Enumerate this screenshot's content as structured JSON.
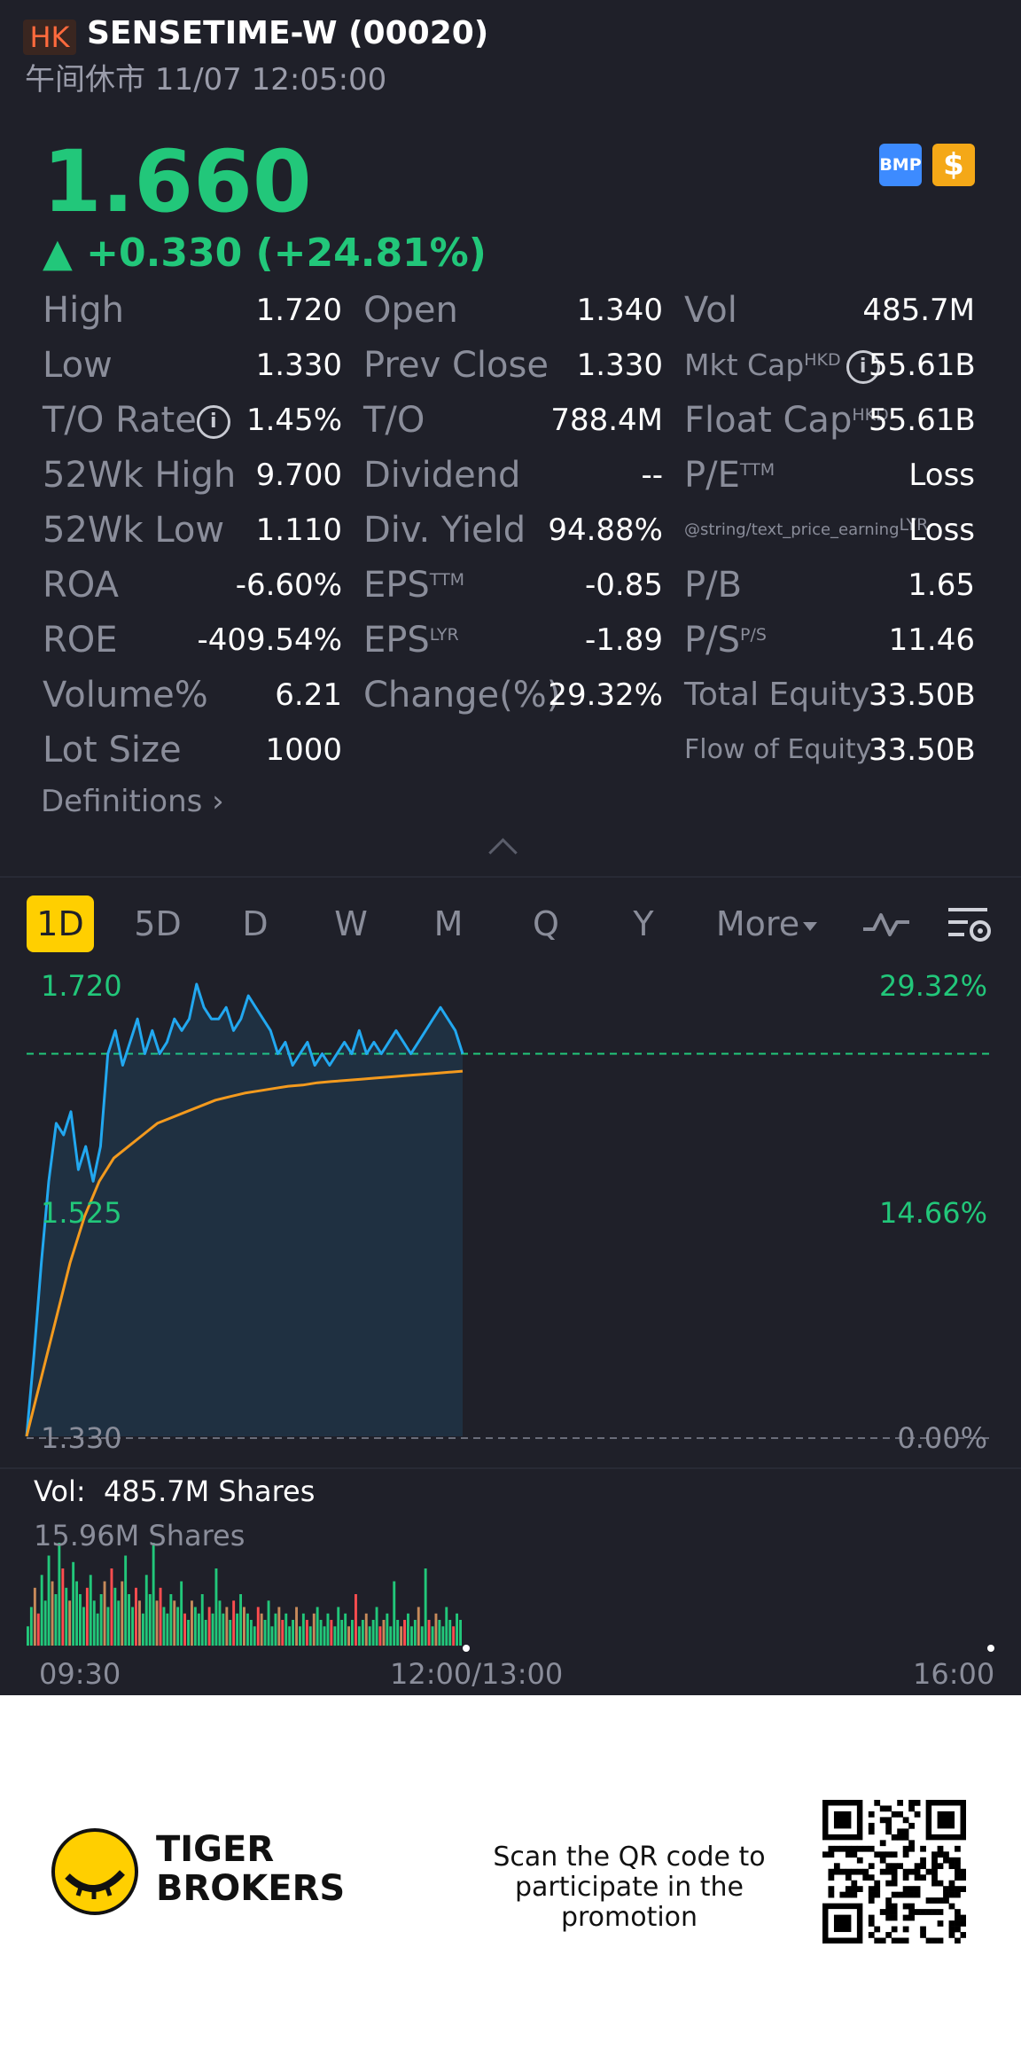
{
  "header": {
    "market": "HK",
    "title": "SENSETIME-W (00020)",
    "status": "午间休市 11/07 12:05:00"
  },
  "quote": {
    "price": "1.660",
    "change": "▲ +0.330 (+24.81%)",
    "icons": [
      "bmp-icon",
      "dollar-icon"
    ],
    "bmp_label": "BMP",
    "dollar_label": "$",
    "colors": {
      "up": "#22c77a",
      "down": "#ff4d4f",
      "accent": "#ffcf00"
    }
  },
  "stats": {
    "col1": [
      {
        "label": "High",
        "value": "1.720"
      },
      {
        "label": "Low",
        "value": "1.330"
      },
      {
        "label": "T/O Rate",
        "value": "1.45%"
      },
      {
        "label": "52Wk High",
        "value": "9.700"
      },
      {
        "label": "52Wk Low",
        "value": "1.110"
      },
      {
        "label": "ROA",
        "value": "-6.60%"
      },
      {
        "label": "ROE",
        "value": "-409.54%"
      },
      {
        "label": "Volume%",
        "value": "6.21"
      },
      {
        "label": "Lot Size",
        "value": "1000"
      }
    ],
    "col2": [
      {
        "label": "Open",
        "value": "1.340"
      },
      {
        "label": "Prev Close",
        "value": "1.330"
      },
      {
        "label": "T/O",
        "value": "788.4M"
      },
      {
        "label": "Dividend",
        "value": "--"
      },
      {
        "label": "Div. Yield",
        "value": "94.88%"
      },
      {
        "label": "EPS",
        "sup": "TTM",
        "value": "-0.85"
      },
      {
        "label": "EPS",
        "sup": "LYR",
        "value": "-1.89"
      },
      {
        "label": "Change(%)",
        "value": "29.32%"
      }
    ],
    "col3": [
      {
        "label": "Vol",
        "value": "485.7M"
      },
      {
        "label": "Mkt Cap",
        "sup": "HKD",
        "value": "55.61B"
      },
      {
        "label": "Float Cap",
        "sup": "HKD",
        "value": "55.61B"
      },
      {
        "label": "P/E",
        "sup": "TTM",
        "value": "Loss"
      },
      {
        "label": "@string/text_price_earning",
        "sup": "LYR",
        "value": "Loss"
      },
      {
        "label": "P/B",
        "value": "1.65"
      },
      {
        "label": "P/S",
        "sup": "P/S",
        "value": "11.46"
      },
      {
        "label": "Total Equity",
        "value": "33.50B"
      },
      {
        "label": "Flow of Equity",
        "value": "33.50B"
      }
    ],
    "definitions": "Definitions"
  },
  "tabs": {
    "items": [
      "1D",
      "5D",
      "D",
      "W",
      "M",
      "Q",
      "Y",
      "More"
    ],
    "active": "1D"
  },
  "chart_data": {
    "type": "line",
    "y_left_labels": [
      "1.720",
      "1.525",
      "1.330"
    ],
    "y_right_labels": [
      "29.32%",
      "14.66%",
      "0.00%"
    ],
    "ylim": [
      1.33,
      1.72
    ],
    "reference_price": 1.66,
    "x_labels": [
      "09:30",
      "12:00/13:00",
      "16:00"
    ],
    "series": [
      {
        "values": [
          1.33,
          1.4,
          1.48,
          1.55,
          1.6,
          1.59,
          1.61,
          1.56,
          1.58,
          1.55,
          1.58,
          1.66,
          1.68,
          1.65,
          1.67,
          1.69,
          1.66,
          1.68,
          1.66,
          1.67,
          1.69,
          1.68,
          1.69,
          1.72,
          1.7,
          1.69,
          1.69,
          1.7,
          1.68,
          1.69,
          1.71,
          1.7,
          1.69,
          1.68,
          1.66,
          1.67,
          1.65,
          1.66,
          1.67,
          1.65,
          1.66,
          1.65,
          1.66,
          1.67,
          1.66,
          1.68,
          1.66,
          1.67,
          1.66,
          1.67,
          1.68,
          1.67,
          1.66,
          1.67,
          1.68,
          1.69,
          1.7,
          1.69,
          1.68,
          1.66
        ],
        "color": "#22a8f0"
      },
      {
        "values": [
          1.33,
          1.38,
          1.43,
          1.48,
          1.52,
          1.55,
          1.57,
          1.58,
          1.59,
          1.6,
          1.605,
          1.61,
          1.615,
          1.62,
          1.623,
          1.626,
          1.628,
          1.63,
          1.632,
          1.633,
          1.635,
          1.636,
          1.637,
          1.638,
          1.639,
          1.64,
          1.641,
          1.642,
          1.643,
          1.644,
          1.645
        ],
        "color": "#f39a1e"
      }
    ]
  },
  "volume": {
    "label": "Vol:",
    "total": "485.7M Shares",
    "scale": "15.96M Shares",
    "bars": [
      3,
      6,
      9,
      5,
      11,
      7,
      14,
      10,
      8,
      16,
      12,
      9,
      7,
      13,
      10,
      8,
      6,
      9,
      11,
      7,
      5,
      8,
      10,
      6,
      12,
      9,
      7,
      10,
      14,
      8,
      6,
      9,
      7,
      5,
      11,
      8,
      16,
      7,
      9,
      6,
      5,
      8,
      7,
      6,
      10,
      5,
      4,
      7,
      6,
      5,
      8,
      4,
      6,
      5,
      12,
      7,
      5,
      6,
      4,
      7,
      5,
      8,
      6,
      5,
      4,
      3,
      6,
      5,
      4,
      7,
      3,
      5,
      6,
      4,
      5,
      3,
      4,
      6,
      3,
      5,
      4,
      3,
      5,
      6,
      4,
      3,
      5,
      4,
      3,
      6,
      4,
      5,
      3,
      4,
      8,
      3,
      4,
      5,
      3,
      4,
      6,
      3,
      4,
      5,
      3,
      10,
      4,
      3,
      4,
      5,
      3,
      4,
      6,
      3,
      12,
      4,
      3,
      5,
      4,
      3,
      6,
      4,
      3,
      5,
      4
    ],
    "bar_colors": [
      "#22c77a",
      "#ff4d4f",
      "#c78a5a"
    ]
  },
  "footer": {
    "brand_line1": "TIGER",
    "brand_line2": "BROKERS",
    "promo": "Scan the QR code to participate in the promotion"
  }
}
